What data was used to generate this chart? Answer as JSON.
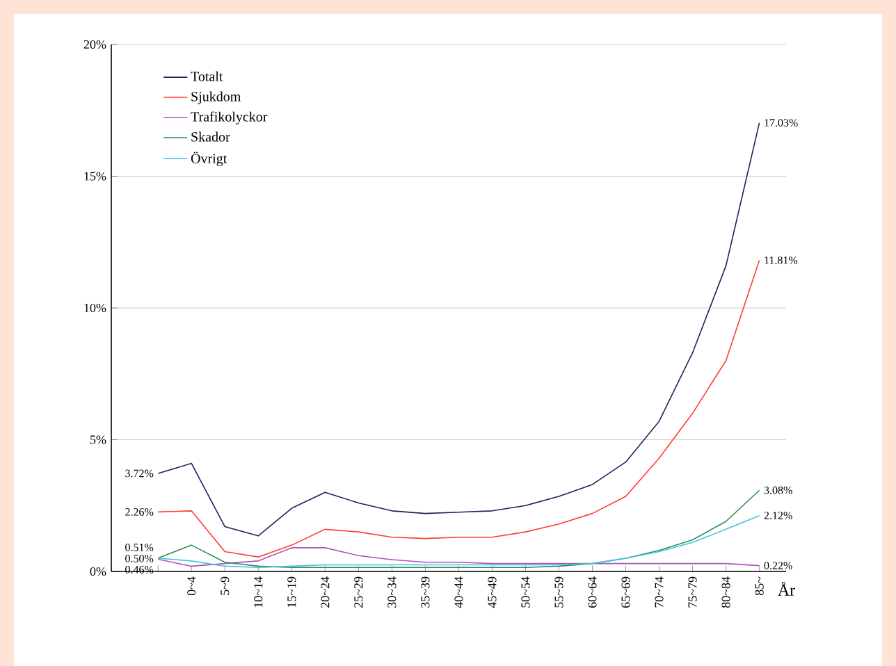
{
  "chart_data": {
    "type": "line",
    "xlabel": "År",
    "categories": [
      null,
      "0~4",
      "5~9",
      "10~14",
      "15~19",
      "20~24",
      "25~29",
      "30~34",
      "35~39",
      "40~44",
      "45~49",
      "50~54",
      "55~59",
      "60~64",
      "65~69",
      "70~74",
      "75~79",
      "80~84",
      "85~"
    ],
    "ylim": [
      0,
      20
    ],
    "yticks": [
      {
        "value": 0,
        "label": "0%"
      },
      {
        "value": 5,
        "label": "5%"
      },
      {
        "value": 10,
        "label": "10%"
      },
      {
        "value": 15,
        "label": "15%"
      },
      {
        "value": 20,
        "label": "20%"
      }
    ],
    "grid": "y",
    "legend": "top left",
    "line_style": "solid",
    "marker": "none",
    "series": [
      {
        "name": "Totalt",
        "color": "#1f1f5c",
        "values": [
          3.72,
          4.1,
          1.7,
          1.35,
          2.4,
          3.0,
          2.6,
          2.3,
          2.2,
          2.25,
          2.3,
          2.5,
          2.85,
          3.3,
          4.15,
          5.7,
          8.3,
          11.6,
          17.03
        ],
        "value_labels": [
          "3.72%",
          null,
          null,
          null,
          null,
          null,
          null,
          null,
          null,
          null,
          null,
          null,
          null,
          null,
          null,
          null,
          null,
          null,
          "17.03%"
        ]
      },
      {
        "name": "Sjukdom",
        "color": "#ff3b30",
        "values": [
          2.26,
          2.3,
          0.75,
          0.55,
          1.0,
          1.6,
          1.5,
          1.3,
          1.25,
          1.3,
          1.3,
          1.5,
          1.8,
          2.2,
          2.85,
          4.3,
          6.0,
          8.0,
          11.81
        ],
        "value_labels": [
          "2.26%",
          null,
          null,
          null,
          null,
          null,
          null,
          null,
          null,
          null,
          null,
          null,
          null,
          null,
          null,
          null,
          null,
          null,
          "11.81%"
        ]
      },
      {
        "name": "Trafikolyckor",
        "color": "#b04fc0",
        "values": [
          0.46,
          0.2,
          0.3,
          0.4,
          0.9,
          0.9,
          0.6,
          0.45,
          0.35,
          0.35,
          0.3,
          0.3,
          0.3,
          0.3,
          0.3,
          0.3,
          0.3,
          0.3,
          0.22
        ],
        "value_labels": [
          "0.46%",
          null,
          null,
          null,
          null,
          null,
          null,
          null,
          null,
          null,
          null,
          null,
          null,
          null,
          null,
          null,
          null,
          null,
          "0.22%"
        ]
      },
      {
        "name": "Skador",
        "color": "#2e8b57",
        "values": [
          0.51,
          1.0,
          0.35,
          0.2,
          0.15,
          0.15,
          0.15,
          0.15,
          0.15,
          0.15,
          0.15,
          0.15,
          0.2,
          0.3,
          0.5,
          0.8,
          1.2,
          1.9,
          3.08
        ],
        "value_labels": [
          "0.51%",
          null,
          null,
          null,
          null,
          null,
          null,
          null,
          null,
          null,
          null,
          null,
          null,
          null,
          null,
          null,
          null,
          null,
          "3.08%"
        ]
      },
      {
        "name": "Övrigt",
        "color": "#3cc4e0",
        "values": [
          0.5,
          0.4,
          0.2,
          0.15,
          0.2,
          0.25,
          0.25,
          0.25,
          0.25,
          0.25,
          0.25,
          0.25,
          0.25,
          0.3,
          0.5,
          0.75,
          1.1,
          1.6,
          2.12
        ],
        "value_labels": [
          "0.50%",
          null,
          null,
          null,
          null,
          null,
          null,
          null,
          null,
          null,
          null,
          null,
          null,
          null,
          null,
          null,
          null,
          null,
          "2.12%"
        ]
      }
    ]
  }
}
